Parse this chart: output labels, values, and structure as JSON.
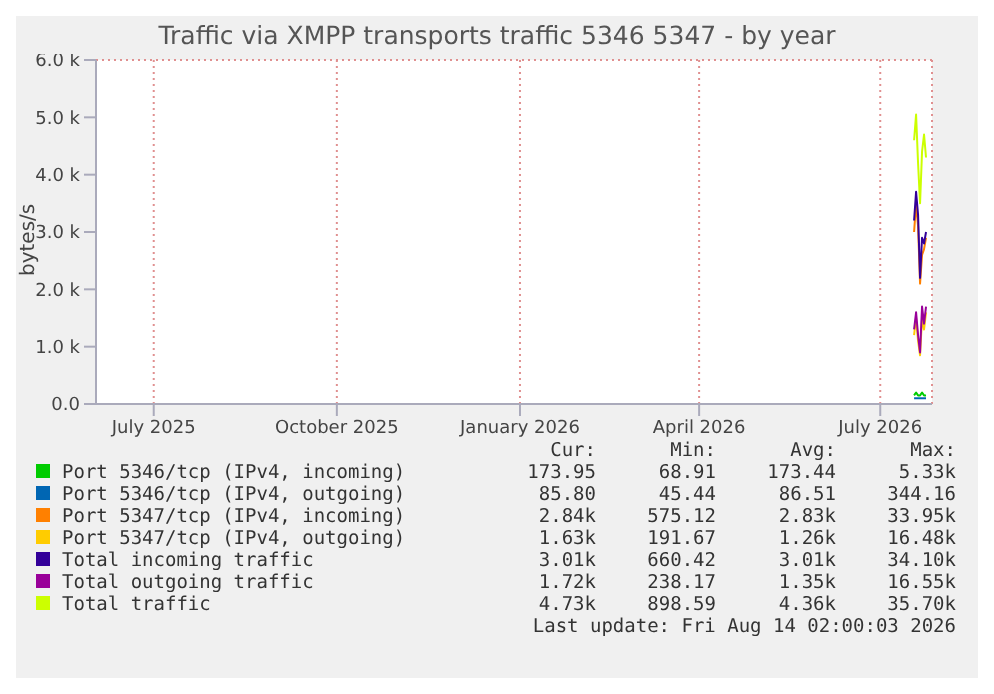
{
  "chart_data": {
    "type": "line",
    "title": "Traffic via XMPP transports traffic 5346 5347 - by year",
    "ylabel": "bytes/s",
    "x": [
      "2026-07-18",
      "2026-07-19",
      "2026-07-20",
      "2026-07-21",
      "2026-07-22",
      "2026-07-23",
      "2026-07-24"
    ],
    "xlim": [
      "2025-06-02",
      "2026-07-27"
    ],
    "xticks": [
      {
        "value": "2025-07-01",
        "label": "July 2025"
      },
      {
        "value": "2025-10-01",
        "label": "October 2025"
      },
      {
        "value": "2026-01-01",
        "label": "January 2026"
      },
      {
        "value": "2026-04-01",
        "label": "April 2026"
      },
      {
        "value": "2026-07-01",
        "label": "July 2026"
      }
    ],
    "ylim": [
      0,
      6000
    ],
    "yticks": [
      {
        "value": 0,
        "label": "0.0"
      },
      {
        "value": 1000,
        "label": "1.0 k"
      },
      {
        "value": 2000,
        "label": "2.0 k"
      },
      {
        "value": 3000,
        "label": "3.0 k"
      },
      {
        "value": 4000,
        "label": "4.0 k"
      },
      {
        "value": 5000,
        "label": "5.0 k"
      },
      {
        "value": 6000,
        "label": "6.0 k"
      }
    ],
    "grid": true,
    "legend": "bottom",
    "series": [
      {
        "name": "Port 5346/tcp (IPv4, incoming)",
        "color": "#00cc00",
        "values": [
          150,
          200,
          150,
          150,
          200,
          150,
          150
        ]
      },
      {
        "name": "Port 5346/tcp (IPv4, outgoing)",
        "color": "#0066b3",
        "values": [
          100,
          100,
          100,
          100,
          100,
          100,
          100
        ]
      },
      {
        "name": "Port 5347/tcp (IPv4, incoming)",
        "color": "#ff8000",
        "values": [
          3000,
          3500,
          3100,
          2100,
          2600,
          2700,
          2900
        ]
      },
      {
        "name": "Port 5347/tcp (IPv4, outgoing)",
        "color": "#ffcc00",
        "values": [
          1200,
          1500,
          1100,
          850,
          1500,
          1300,
          1600
        ]
      },
      {
        "name": "Total incoming traffic",
        "color": "#330099",
        "values": [
          3200,
          3700,
          3300,
          2200,
          2900,
          2800,
          3000
        ]
      },
      {
        "name": "Total outgoing traffic",
        "color": "#990099",
        "values": [
          1300,
          1600,
          1200,
          900,
          1700,
          1400,
          1700
        ]
      },
      {
        "name": "Total traffic",
        "color": "#ccff00",
        "values": [
          4600,
          5050,
          4200,
          3500,
          4400,
          4700,
          4300
        ]
      }
    ],
    "annotations": [
      "Cur: Min: Avg: Max:",
      "173.95 68.91 173.44 5.33k",
      "85.80 45.44 86.51 344.16",
      "2.84k 575.12 2.83k 33.95k",
      "1.63k 191.67 1.26k 16.48k",
      "3.01k 660.42 3.01k 34.10k",
      "1.72k 238.17 1.35k 16.55k",
      "4.73k 898.59 4.36k 35.70k",
      "Last update: Fri Aug 14 02:00:03 2026"
    ]
  }
}
